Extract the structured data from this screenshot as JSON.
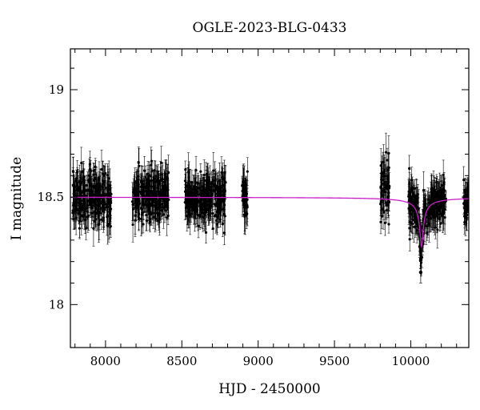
{
  "chart_data": {
    "type": "scatter",
    "title": "OGLE-2023-BLG-0433",
    "xlabel": "HJD - 2450000",
    "ylabel": "I magnitude",
    "xlim": [
      7770,
      10380
    ],
    "ylim": [
      19.19,
      17.8
    ],
    "y_inverted": true,
    "grid": false,
    "x_ticks": [
      {
        "value": 8000,
        "label": "8000"
      },
      {
        "value": 8500,
        "label": "8500"
      },
      {
        "value": 9000,
        "label": "9000"
      },
      {
        "value": 9500,
        "label": "9500"
      },
      {
        "value": 10000,
        "label": "10000"
      }
    ],
    "y_ticks": [
      {
        "value": 18,
        "label": "18"
      },
      {
        "value": 18.5,
        "label": "18.5"
      },
      {
        "value": 19,
        "label": "19"
      }
    ],
    "observing_seasons": [
      {
        "x_range": [
          7785,
          8040
        ],
        "mean_mag": 18.5,
        "scatter": 0.06
      },
      {
        "x_range": [
          8175,
          8415
        ],
        "mean_mag": 18.5,
        "scatter": 0.06
      },
      {
        "x_range": [
          8520,
          8790
        ],
        "mean_mag": 18.5,
        "scatter": 0.06
      },
      {
        "x_range": [
          8895,
          8930
        ],
        "mean_mag": 18.5,
        "scatter": 0.05
      },
      {
        "x_range": [
          9800,
          9860
        ],
        "mean_mag": 18.55,
        "scatter": 0.07
      },
      {
        "x_range": [
          9985,
          10230
        ],
        "mean_mag": 18.5,
        "scatter": 0.05
      },
      {
        "x_range": [
          10345,
          10380
        ],
        "mean_mag": 18.48,
        "scatter": 0.04
      }
    ],
    "series": [
      {
        "style": "points-with-errorbars",
        "color": "#000000",
        "highlighted_points": [
          {
            "x": 10065,
            "y": 18.15
          },
          {
            "x": 10070,
            "y": 18.22
          },
          {
            "x": 10075,
            "y": 18.28
          },
          {
            "x": 10082,
            "y": 18.33
          },
          {
            "x": 10090,
            "y": 18.38
          },
          {
            "x": 10060,
            "y": 18.27
          },
          {
            "x": 10055,
            "y": 18.36
          },
          {
            "x": 10350,
            "y": 18.47
          },
          {
            "x": 10370,
            "y": 18.49
          },
          {
            "x": 10355,
            "y": 18.53
          }
        ]
      },
      {
        "style": "model-line",
        "color": "#c81ec8",
        "baseline": 18.5,
        "peak_x": 10070,
        "peak_mag": 18.27,
        "width_days": 20
      }
    ]
  }
}
